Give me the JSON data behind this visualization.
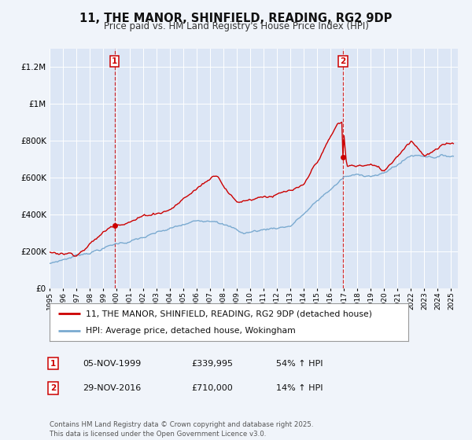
{
  "title": "11, THE MANOR, SHINFIELD, READING, RG2 9DP",
  "subtitle": "Price paid vs. HM Land Registry's House Price Index (HPI)",
  "bg_color": "#f0f4fa",
  "plot_bg_color": "#dce6f5",
  "red_color": "#cc0000",
  "blue_color": "#7aaad0",
  "legend_label_red": "11, THE MANOR, SHINFIELD, READING, RG2 9DP (detached house)",
  "legend_label_blue": "HPI: Average price, detached house, Wokingham",
  "sale1_date": "05-NOV-1999",
  "sale1_price": "£339,995",
  "sale1_hpi": "54% ↑ HPI",
  "sale2_date": "29-NOV-2016",
  "sale2_price": "£710,000",
  "sale2_hpi": "14% ↑ HPI",
  "copyright": "Contains HM Land Registry data © Crown copyright and database right 2025.\nThis data is licensed under the Open Government Licence v3.0.",
  "ylim_max": 1300000,
  "xlim_start": 1995.0,
  "xlim_end": 2025.5,
  "sale1_x": 1999.85,
  "sale1_y": 339995,
  "sale2_x": 2016.91,
  "sale2_y": 710000,
  "yticks": [
    0,
    200000,
    400000,
    600000,
    800000,
    1000000,
    1200000
  ]
}
